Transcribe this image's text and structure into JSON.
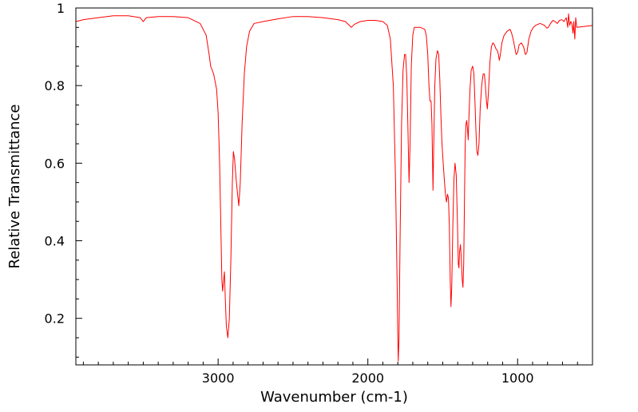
{
  "chart_data": {
    "type": "line",
    "title": "",
    "xlabel": "Wavenumber (cm-1)",
    "ylabel": "Relative Transmittance",
    "xlim": [
      3950,
      500
    ],
    "ylim": [
      0.08,
      1.0
    ],
    "x_axis_reversed": true,
    "grid": false,
    "legend": "none",
    "x_ticks": [
      3000,
      2000,
      1000
    ],
    "x_tick_labels": [
      "3000",
      "2000",
      "1000"
    ],
    "y_ticks": [
      0.2,
      0.4,
      0.6,
      0.8,
      1.0
    ],
    "y_tick_labels": [
      "0.2",
      "0.4",
      "0.6",
      "0.8",
      "1"
    ],
    "series": [
      {
        "color": "#ff0000",
        "points": [
          [
            3950,
            0.965
          ],
          [
            3900,
            0.97
          ],
          [
            3800,
            0.975
          ],
          [
            3700,
            0.98
          ],
          [
            3600,
            0.98
          ],
          [
            3520,
            0.975
          ],
          [
            3500,
            0.965
          ],
          [
            3480,
            0.975
          ],
          [
            3400,
            0.978
          ],
          [
            3300,
            0.978
          ],
          [
            3200,
            0.975
          ],
          [
            3120,
            0.96
          ],
          [
            3080,
            0.93
          ],
          [
            3060,
            0.88
          ],
          [
            3050,
            0.85
          ],
          [
            3030,
            0.83
          ],
          [
            3020,
            0.81
          ],
          [
            3010,
            0.79
          ],
          [
            3000,
            0.73
          ],
          [
            2990,
            0.6
          ],
          [
            2980,
            0.4
          ],
          [
            2975,
            0.3
          ],
          [
            2970,
            0.27
          ],
          [
            2963,
            0.3
          ],
          [
            2958,
            0.32
          ],
          [
            2952,
            0.25
          ],
          [
            2945,
            0.18
          ],
          [
            2935,
            0.15
          ],
          [
            2925,
            0.2
          ],
          [
            2915,
            0.35
          ],
          [
            2905,
            0.55
          ],
          [
            2898,
            0.63
          ],
          [
            2890,
            0.61
          ],
          [
            2880,
            0.56
          ],
          [
            2870,
            0.52
          ],
          [
            2862,
            0.49
          ],
          [
            2852,
            0.55
          ],
          [
            2840,
            0.7
          ],
          [
            2825,
            0.83
          ],
          [
            2810,
            0.9
          ],
          [
            2790,
            0.94
          ],
          [
            2760,
            0.96
          ],
          [
            2700,
            0.965
          ],
          [
            2600,
            0.972
          ],
          [
            2500,
            0.978
          ],
          [
            2400,
            0.978
          ],
          [
            2300,
            0.975
          ],
          [
            2200,
            0.97
          ],
          [
            2150,
            0.965
          ],
          [
            2110,
            0.95
          ],
          [
            2090,
            0.958
          ],
          [
            2050,
            0.965
          ],
          [
            2000,
            0.968
          ],
          [
            1950,
            0.968
          ],
          [
            1900,
            0.965
          ],
          [
            1870,
            0.955
          ],
          [
            1850,
            0.92
          ],
          [
            1830,
            0.8
          ],
          [
            1815,
            0.55
          ],
          [
            1805,
            0.3
          ],
          [
            1800,
            0.15
          ],
          [
            1797,
            0.09
          ],
          [
            1792,
            0.15
          ],
          [
            1785,
            0.4
          ],
          [
            1775,
            0.7
          ],
          [
            1765,
            0.84
          ],
          [
            1755,
            0.88
          ],
          [
            1748,
            0.88
          ],
          [
            1740,
            0.82
          ],
          [
            1733,
            0.7
          ],
          [
            1725,
            0.55
          ],
          [
            1718,
            0.65
          ],
          [
            1710,
            0.85
          ],
          [
            1700,
            0.93
          ],
          [
            1690,
            0.95
          ],
          [
            1650,
            0.95
          ],
          [
            1620,
            0.945
          ],
          [
            1610,
            0.93
          ],
          [
            1600,
            0.88
          ],
          [
            1592,
            0.8
          ],
          [
            1585,
            0.76
          ],
          [
            1578,
            0.76
          ],
          [
            1572,
            0.7
          ],
          [
            1568,
            0.6
          ],
          [
            1565,
            0.53
          ],
          [
            1560,
            0.65
          ],
          [
            1553,
            0.8
          ],
          [
            1545,
            0.87
          ],
          [
            1535,
            0.89
          ],
          [
            1527,
            0.88
          ],
          [
            1520,
            0.82
          ],
          [
            1512,
            0.72
          ],
          [
            1505,
            0.65
          ],
          [
            1497,
            0.6
          ],
          [
            1490,
            0.56
          ],
          [
            1482,
            0.52
          ],
          [
            1475,
            0.5
          ],
          [
            1468,
            0.52
          ],
          [
            1462,
            0.51
          ],
          [
            1456,
            0.44
          ],
          [
            1450,
            0.3
          ],
          [
            1445,
            0.23
          ],
          [
            1440,
            0.28
          ],
          [
            1432,
            0.45
          ],
          [
            1425,
            0.56
          ],
          [
            1418,
            0.6
          ],
          [
            1410,
            0.57
          ],
          [
            1402,
            0.45
          ],
          [
            1396,
            0.34
          ],
          [
            1392,
            0.33
          ],
          [
            1388,
            0.37
          ],
          [
            1382,
            0.39
          ],
          [
            1377,
            0.36
          ],
          [
            1370,
            0.3
          ],
          [
            1365,
            0.28
          ],
          [
            1360,
            0.34
          ],
          [
            1355,
            0.5
          ],
          [
            1350,
            0.65
          ],
          [
            1345,
            0.7
          ],
          [
            1340,
            0.71
          ],
          [
            1335,
            0.69
          ],
          [
            1330,
            0.66
          ],
          [
            1325,
            0.72
          ],
          [
            1318,
            0.79
          ],
          [
            1310,
            0.84
          ],
          [
            1300,
            0.85
          ],
          [
            1292,
            0.83
          ],
          [
            1285,
            0.76
          ],
          [
            1278,
            0.68
          ],
          [
            1272,
            0.63
          ],
          [
            1265,
            0.62
          ],
          [
            1258,
            0.65
          ],
          [
            1250,
            0.74
          ],
          [
            1240,
            0.8
          ],
          [
            1230,
            0.83
          ],
          [
            1222,
            0.83
          ],
          [
            1215,
            0.8
          ],
          [
            1208,
            0.76
          ],
          [
            1202,
            0.74
          ],
          [
            1195,
            0.78
          ],
          [
            1185,
            0.86
          ],
          [
            1175,
            0.9
          ],
          [
            1165,
            0.91
          ],
          [
            1155,
            0.905
          ],
          [
            1145,
            0.895
          ],
          [
            1135,
            0.89
          ],
          [
            1128,
            0.88
          ],
          [
            1122,
            0.865
          ],
          [
            1115,
            0.88
          ],
          [
            1105,
            0.91
          ],
          [
            1090,
            0.93
          ],
          [
            1070,
            0.94
          ],
          [
            1050,
            0.945
          ],
          [
            1040,
            0.935
          ],
          [
            1030,
            0.92
          ],
          [
            1020,
            0.9
          ],
          [
            1010,
            0.88
          ],
          [
            1000,
            0.885
          ],
          [
            990,
            0.905
          ],
          [
            975,
            0.91
          ],
          [
            960,
            0.9
          ],
          [
            948,
            0.88
          ],
          [
            938,
            0.885
          ],
          [
            925,
            0.92
          ],
          [
            910,
            0.94
          ],
          [
            895,
            0.95
          ],
          [
            880,
            0.955
          ],
          [
            865,
            0.958
          ],
          [
            850,
            0.96
          ],
          [
            835,
            0.958
          ],
          [
            820,
            0.955
          ],
          [
            805,
            0.948
          ],
          [
            795,
            0.95
          ],
          [
            780,
            0.96
          ],
          [
            765,
            0.968
          ],
          [
            750,
            0.965
          ],
          [
            735,
            0.96
          ],
          [
            720,
            0.968
          ],
          [
            705,
            0.97
          ],
          [
            690,
            0.965
          ],
          [
            675,
            0.975
          ],
          [
            665,
            0.95
          ],
          [
            660,
            0.985
          ],
          [
            652,
            0.955
          ],
          [
            645,
            0.965
          ],
          [
            638,
            0.96
          ],
          [
            630,
            0.935
          ],
          [
            625,
            0.965
          ],
          [
            618,
            0.92
          ],
          [
            612,
            0.975
          ],
          [
            605,
            0.95
          ],
          [
            500,
            0.955
          ]
        ]
      }
    ]
  }
}
